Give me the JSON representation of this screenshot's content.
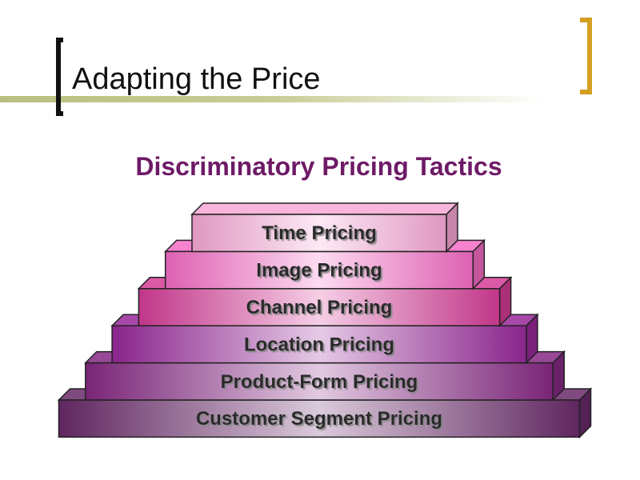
{
  "slide": {
    "title": "Adapting the Price",
    "subtitle": "Discriminatory Pricing Tactics"
  },
  "pyramid": {
    "steps": [
      {
        "label": "Time Pricing",
        "color": "#f8a8d6"
      },
      {
        "label": "Image Pricing",
        "color": "#f66cc6"
      },
      {
        "label": "Channel Pricing",
        "color": "#d63c98"
      },
      {
        "label": "Location Pricing",
        "color": "#98289a"
      },
      {
        "label": "Product-Form Pricing",
        "color": "#862884"
      },
      {
        "label": "Customer Segment Pricing",
        "color": "#6a2a6a"
      }
    ]
  },
  "colors": {
    "accent_bracket": "#d4a020",
    "subtitle": "#6e1a66",
    "rule": "#b9bf7e"
  }
}
